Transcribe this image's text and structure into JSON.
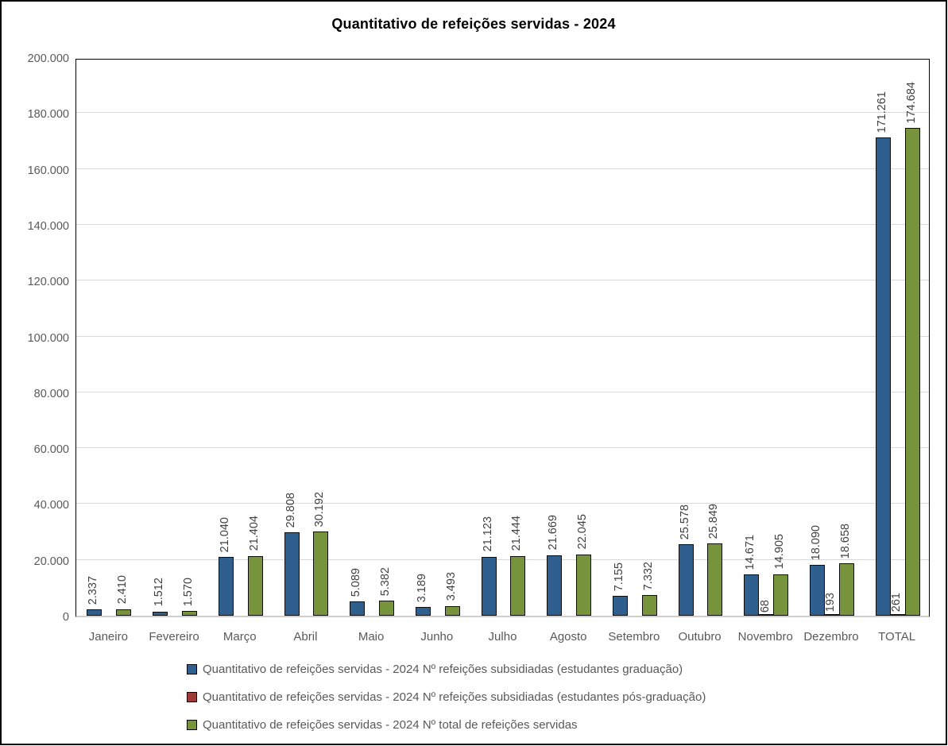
{
  "chart_data": {
    "type": "bar",
    "title": "Quantitativo de refeições servidas - 2024",
    "categories": [
      "Janeiro",
      "Fevereiro",
      "Março",
      "Abril",
      "Maio",
      "Junho",
      "Julho",
      "Agosto",
      "Setembro",
      "Outubro",
      "Novembro",
      "Dezembro",
      "TOTAL"
    ],
    "series": [
      {
        "name": "Quantitativo de refeições servidas - 2024 Nº refeições subsidiadas (estudantes graduação)",
        "color": "#2F5F8F",
        "values": [
          2337,
          1512,
          21040,
          29808,
          5089,
          3189,
          21123,
          21669,
          7155,
          25578,
          14671,
          18090,
          171261
        ],
        "labels": [
          "2.337",
          "1.512",
          "21.040",
          "29.808",
          "5.089",
          "3.189",
          "21.123",
          "21.669",
          "7.155",
          "25.578",
          "14.671",
          "18.090",
          "171.261"
        ]
      },
      {
        "name": "Quantitativo de refeições servidas - 2024 Nº refeições subsidiadas (estudantes pós-graduação)",
        "color": "#9E3B39",
        "values": [
          0,
          0,
          0,
          0,
          0,
          0,
          0,
          0,
          0,
          0,
          68,
          193,
          261
        ],
        "labels": [
          "",
          "",
          "",
          "",
          "",
          "",
          "",
          "",
          "",
          "",
          "68",
          "193",
          "261"
        ]
      },
      {
        "name": "Quantitativo de refeições servidas - 2024 Nº total de refeições servidas",
        "color": "#77933C",
        "values": [
          2410,
          1570,
          21404,
          30192,
          5382,
          3493,
          21444,
          22045,
          7332,
          25849,
          14905,
          18658,
          174684
        ],
        "labels": [
          "2.410",
          "1.570",
          "21.404",
          "30.192",
          "5.382",
          "3.493",
          "21.444",
          "22.045",
          "7.332",
          "25.849",
          "14.905",
          "18.658",
          "174.684"
        ]
      }
    ],
    "ylim": [
      0,
      200000
    ],
    "ytick_step": 20000,
    "yticks": [
      {
        "value": 0,
        "label": "0"
      },
      {
        "value": 20000,
        "label": "20.000"
      },
      {
        "value": 40000,
        "label": "40.000"
      },
      {
        "value": 60000,
        "label": "60.000"
      },
      {
        "value": 80000,
        "label": "80.000"
      },
      {
        "value": 100000,
        "label": "100.000"
      },
      {
        "value": 120000,
        "label": "120.000"
      },
      {
        "value": 140000,
        "label": "140.000"
      },
      {
        "value": 160000,
        "label": "160.000"
      },
      {
        "value": 180000,
        "label": "180.000"
      },
      {
        "value": 200000,
        "label": "200.000"
      }
    ],
    "grid": "horizontal",
    "legend_position": "bottom-left",
    "colors": {
      "grid_line": "#D9D9D9",
      "axis_text": "#595959",
      "data_label_text": "#404040",
      "bar_border": "#0D0D0D",
      "plot_border": "#000000",
      "baseline": "#D0CECE"
    }
  }
}
